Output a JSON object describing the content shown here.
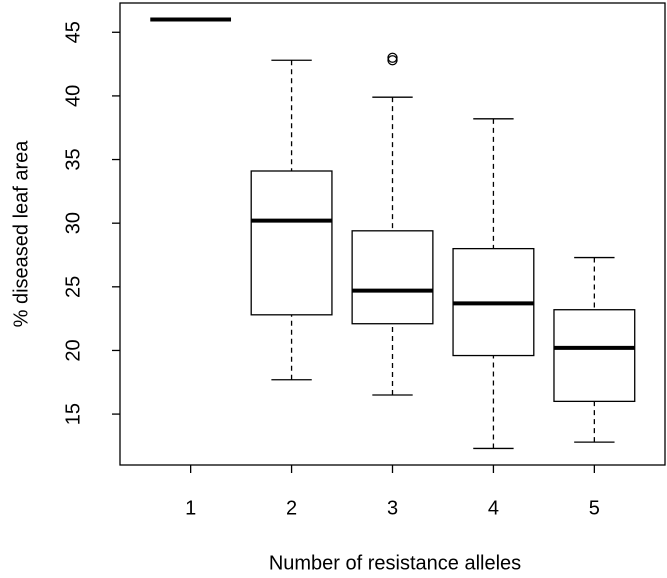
{
  "chart_data": {
    "type": "boxplot",
    "x_label": "Number of resistance alleles",
    "y_label": "% diseased leaf area",
    "categories": [
      "1",
      "2",
      "3",
      "4",
      "5"
    ],
    "boxes": [
      {
        "low": 46,
        "q1": 46,
        "median": 46,
        "q3": 46,
        "high": 46,
        "outliers": []
      },
      {
        "low": 17.7,
        "q1": 22.8,
        "median": 30.2,
        "q3": 34.1,
        "high": 42.8,
        "outliers": []
      },
      {
        "low": 16.5,
        "q1": 22.1,
        "median": 24.7,
        "q3": 29.4,
        "high": 39.9,
        "outliers": [
          43.0,
          42.8
        ]
      },
      {
        "low": 12.3,
        "q1": 19.6,
        "median": 23.7,
        "q3": 28.0,
        "high": 38.2,
        "outliers": []
      },
      {
        "low": 12.8,
        "q1": 16.0,
        "median": 20.2,
        "q3": 23.2,
        "high": 27.3,
        "outliers": []
      }
    ],
    "color": "#000000",
    "ylim": [
      11,
      47.3
    ],
    "yticks": [
      15,
      20,
      25,
      30,
      35,
      40,
      45
    ]
  }
}
